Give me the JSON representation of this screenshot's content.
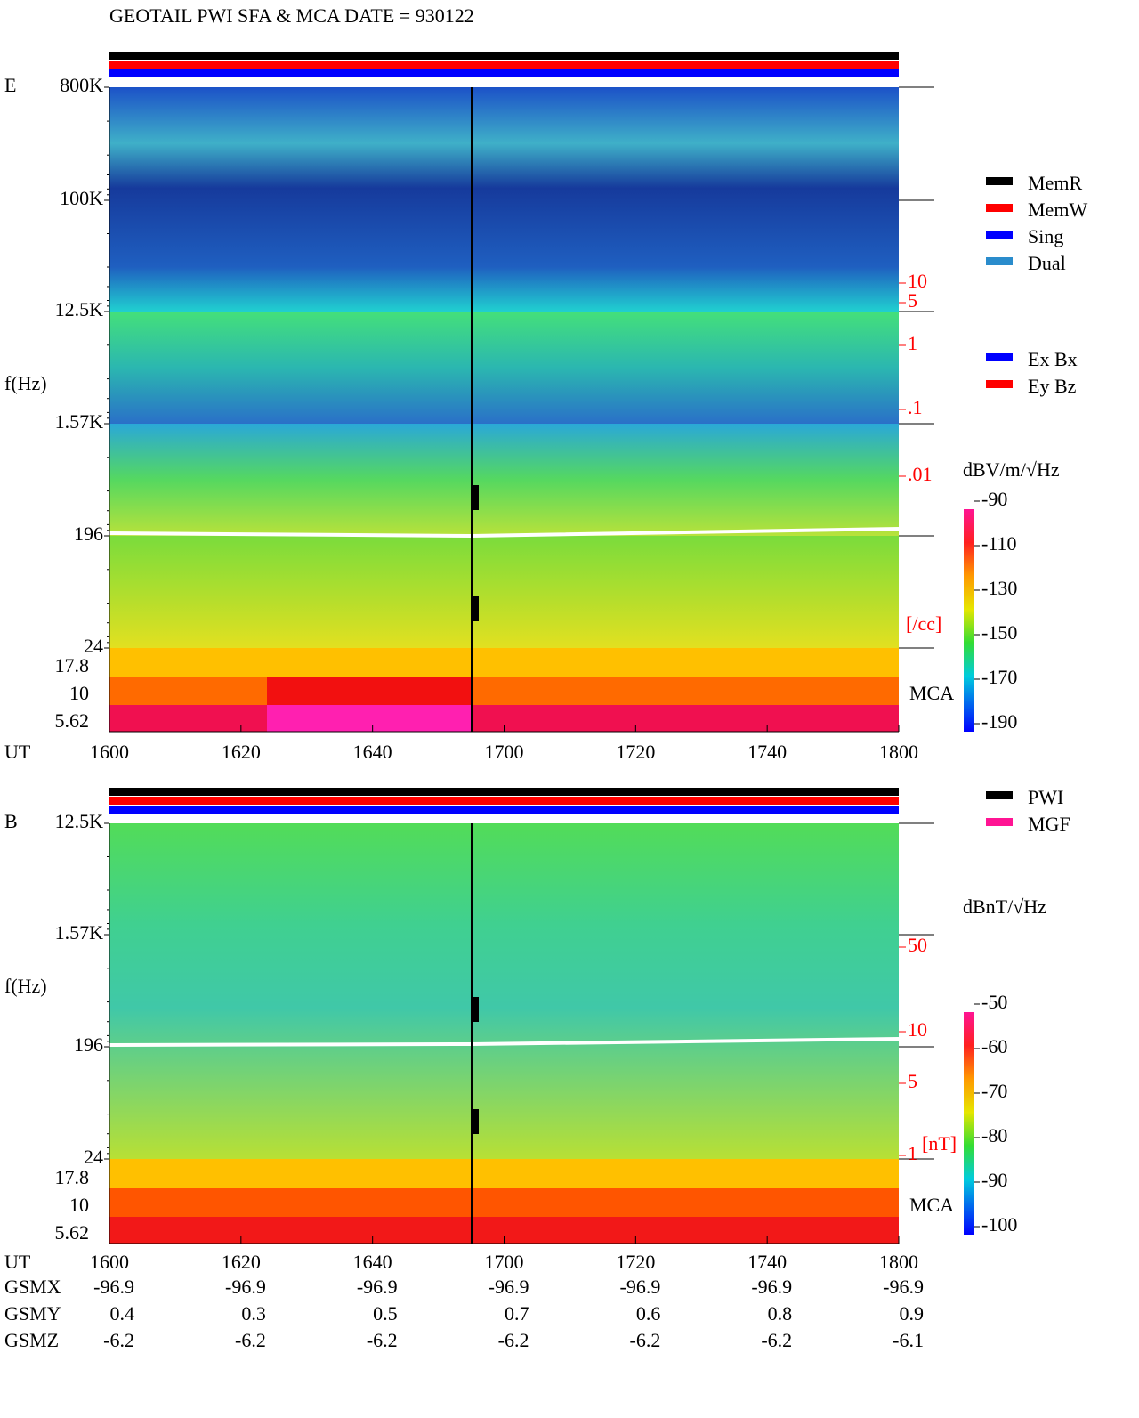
{
  "header": {
    "title": "GEOTAIL  PWI SFA & MCA   DATE = 930122"
  },
  "legends": {
    "memory": [
      {
        "label": "MemR",
        "color": "#000000"
      },
      {
        "label": "MemW",
        "color": "#ff0000"
      },
      {
        "label": "Sing",
        "color": "#0000ff"
      },
      {
        "label": "Dual",
        "color": "#2a8ccc"
      }
    ],
    "antenna": [
      {
        "label": "Ex Bx",
        "color": "#0000ff"
      },
      {
        "label": "Ey Bz",
        "color": "#ff0000"
      }
    ],
    "source": [
      {
        "label": "PWI",
        "color": "#000000"
      },
      {
        "label": "MGF",
        "color": "#ff1493"
      }
    ]
  },
  "panels": [
    {
      "component": "E",
      "y_label": "f(Hz)",
      "freq_ticks": [
        "800K",
        "100K",
        "12.5K",
        "1.57K",
        "196",
        "24"
      ],
      "mca_ticks": [
        "17.8",
        "10",
        "5.62"
      ],
      "mca_label": "MCA",
      "density_ticks": [
        "10",
        "5",
        "1",
        ".1",
        ".01"
      ],
      "density_unit": "[/cc]",
      "colorbar_label": "dBV/m/√Hz",
      "colorbar_ticks": [
        -90,
        -110,
        -130,
        -150,
        -170,
        -190
      ]
    },
    {
      "component": "B",
      "y_label": "f(Hz)",
      "freq_ticks": [
        "12.5K",
        "1.57K",
        "196",
        "24"
      ],
      "mca_ticks": [
        "17.8",
        "10",
        "5.62"
      ],
      "mca_label": "MCA",
      "density_ticks": [
        "50",
        "10",
        "5",
        "1"
      ],
      "density_unit": "[nT]",
      "colorbar_label": "dBnT/√Hz",
      "colorbar_ticks": [
        -50,
        -60,
        -70,
        -80,
        -90,
        -100
      ]
    }
  ],
  "time_axis": {
    "label": "UT",
    "ticks": [
      "1600",
      "1620",
      "1640",
      "1700",
      "1720",
      "1740",
      "1800"
    ]
  },
  "orbit": [
    {
      "label": "GSMX",
      "values": [
        -96.9,
        -96.9,
        -96.9,
        -96.9,
        -96.9,
        -96.9,
        -96.9
      ]
    },
    {
      "label": "GSMY",
      "values": [
        0.4,
        0.3,
        0.5,
        0.7,
        0.6,
        0.8,
        0.9
      ]
    },
    {
      "label": "GSMZ",
      "values": [
        -6.2,
        -6.2,
        -6.2,
        -6.2,
        -6.2,
        -6.2,
        -6.1
      ]
    }
  ]
}
